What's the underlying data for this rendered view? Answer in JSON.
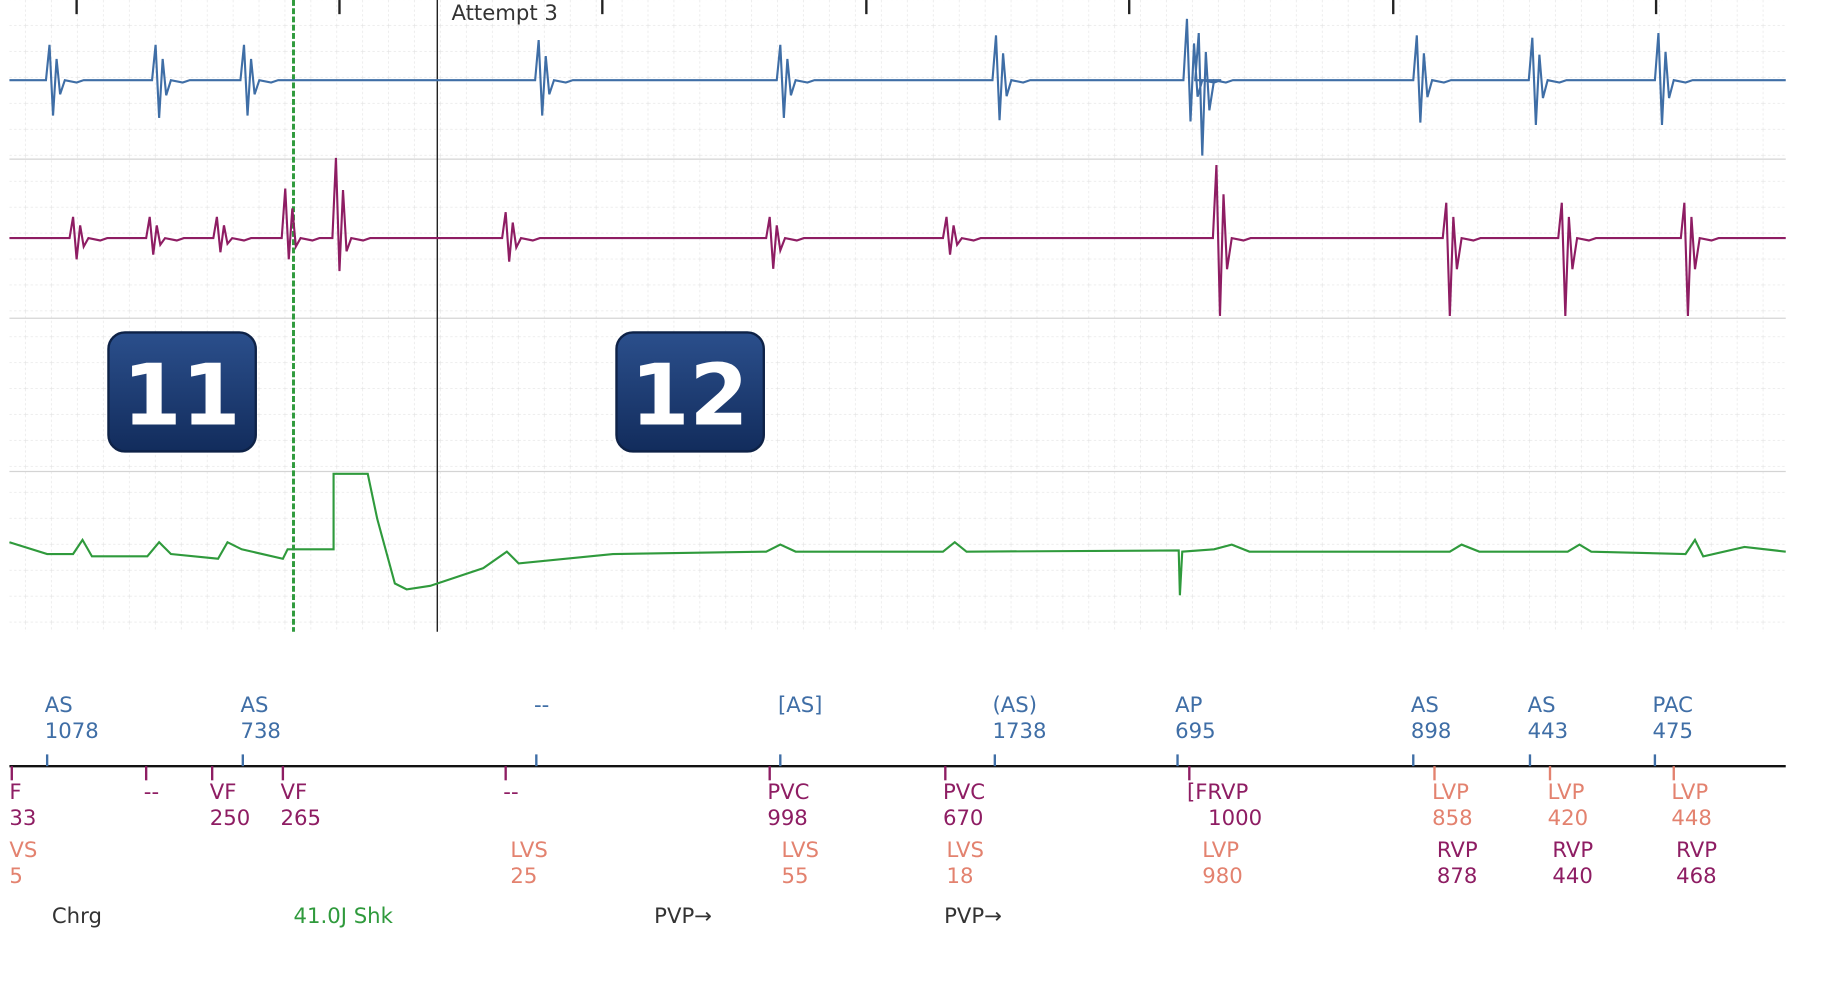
{
  "title": "Attempt 3",
  "badges": [
    "11",
    "12"
  ],
  "atrial_markers": [
    {
      "label": "AS",
      "interval": "1078"
    },
    {
      "label": "AS",
      "interval": "738"
    },
    {
      "label": "--"
    },
    {
      "label": "[AS]"
    },
    {
      "label": "(AS)",
      "interval": "1738"
    },
    {
      "label": "AP",
      "interval": "695"
    },
    {
      "label": "AS",
      "interval": "898"
    },
    {
      "label": "AS",
      "interval": "443"
    },
    {
      "label": "PAC",
      "interval": "475"
    }
  ],
  "ventricular_markers": [
    {
      "label": "F",
      "interval": "33"
    },
    {
      "label": "--"
    },
    {
      "label": "VF",
      "interval": "250"
    },
    {
      "label": "VF",
      "interval": "265"
    },
    {
      "label": "--"
    },
    {
      "label": "PVC",
      "interval": "998"
    },
    {
      "label": "PVC",
      "interval": "670"
    },
    {
      "label": "[FRVP",
      "interval": "1000"
    },
    {
      "label": "LVP",
      "interval": "858"
    },
    {
      "label": "LVP",
      "interval": "420"
    },
    {
      "label": "LVP",
      "interval": "448"
    }
  ],
  "secondary_markers": [
    {
      "label": "VS",
      "interval": "5"
    },
    {
      "label": "LVS",
      "interval": "25"
    },
    {
      "label": "LVS",
      "interval": "55"
    },
    {
      "label": "LVS",
      "interval": "18"
    },
    {
      "label": "LVP",
      "interval": "980"
    },
    {
      "label": "RVP",
      "interval": "878"
    },
    {
      "label": "RVP",
      "interval": "440"
    },
    {
      "label": "RVP",
      "interval": "468"
    }
  ],
  "events": [
    "Chrg",
    "41.0J Shk",
    "PVP→",
    "PVP→"
  ]
}
